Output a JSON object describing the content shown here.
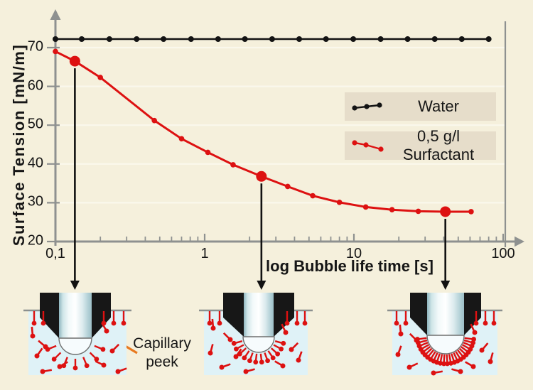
{
  "figure": {
    "background_color": "#f5f0dc",
    "axis_color": "#8e9190",
    "grid_color": "#faf8ec",
    "text_color": "#161616"
  },
  "chart_data": {
    "type": "line",
    "title": "",
    "xlabel": "log Bubble life time [s]",
    "ylabel": "Surface Tension [mN/m]",
    "x_scale": "log",
    "xlim": [
      0.1,
      100
    ],
    "ylim": [
      20,
      77
    ],
    "grid": "horizontal",
    "x_ticks": [
      {
        "value": 0.1,
        "label": "0,1"
      },
      {
        "value": 1,
        "label": "1"
      },
      {
        "value": 10,
        "label": "10"
      },
      {
        "value": 100,
        "label": "100"
      }
    ],
    "y_ticks": [
      {
        "value": 20,
        "label": "20"
      },
      {
        "value": 30,
        "label": "30"
      },
      {
        "value": 40,
        "label": "40"
      },
      {
        "value": 50,
        "label": "50"
      },
      {
        "value": 60,
        "label": "60"
      },
      {
        "value": 70,
        "label": "70"
      }
    ],
    "grid_y": [
      30,
      40,
      50,
      60,
      70
    ],
    "legend_position": "inside-right",
    "series": [
      {
        "name": "Water",
        "color": "#131313",
        "line_width": 2.6,
        "marker_r": 4,
        "x": [
          0.1,
          0.15,
          0.23,
          0.35,
          0.53,
          0.81,
          1.23,
          1.86,
          2.83,
          4.3,
          6.5,
          9.9,
          15.1,
          22.9,
          34.8,
          52.8,
          80
        ],
        "y": [
          72.2,
          72.2,
          72.2,
          72.2,
          72.2,
          72.2,
          72.2,
          72.2,
          72.2,
          72.2,
          72.2,
          72.2,
          72.2,
          72.2,
          72.2,
          72.2,
          72.2
        ],
        "emphasis": []
      },
      {
        "name": "0,5 g/l Surfactant",
        "color": "#dd1111",
        "line_width": 3,
        "marker_r": 3.8,
        "x": [
          0.1,
          0.135,
          0.2,
          0.46,
          0.7,
          1.05,
          1.55,
          2.4,
          3.6,
          5.3,
          8,
          12,
          18,
          27,
          41,
          61
        ],
        "y": [
          69,
          66.5,
          62.3,
          51.2,
          46.5,
          43,
          39.8,
          36.8,
          34.2,
          31.8,
          30.1,
          28.9,
          28.2,
          27.8,
          27.7,
          27.7
        ],
        "emphasis": [
          1,
          7,
          14
        ]
      }
    ]
  },
  "legend": {
    "items": [
      {
        "label": "Water",
        "color": "#131313"
      },
      {
        "label": "0,5 g/l Surfactant",
        "color": "#dd1111"
      }
    ],
    "box_color": "#e6ddca"
  },
  "annotation": {
    "line1": "Capillary",
    "line2": "peek",
    "arrow_color": "#e8791f"
  },
  "diagrams": {
    "liquid_color": "#dff2f7",
    "molecule_color": "#dd1111",
    "capillary_color": "#171717",
    "stages": [
      {
        "bubble_molecules": 7
      },
      {
        "bubble_molecules": 12
      },
      {
        "bubble_molecules": 24
      }
    ]
  }
}
